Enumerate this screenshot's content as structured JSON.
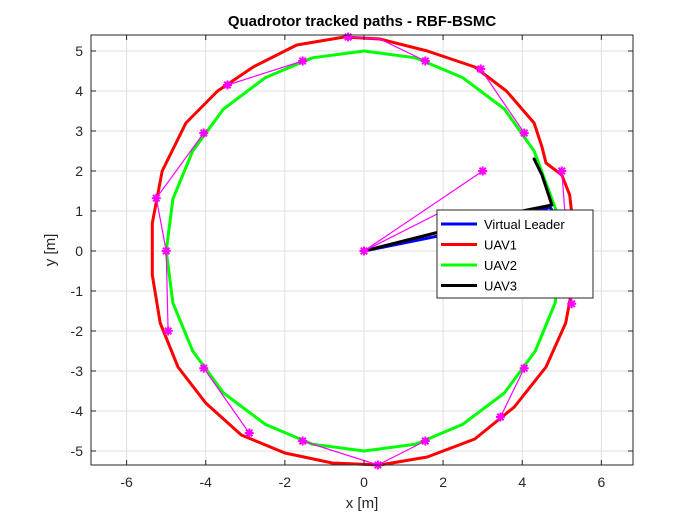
{
  "chart_data": {
    "type": "line",
    "title": "Quadrotor tracked paths - RBF-BSMC",
    "xlabel": "x [m]",
    "ylabel": "y [m]",
    "xlim": [
      -6.9,
      6.8
    ],
    "ylim": [
      -5.35,
      5.4
    ],
    "xticks": [
      -6,
      -4,
      -2,
      0,
      2,
      4,
      6
    ],
    "yticks": [
      -5,
      -4,
      -3,
      -2,
      -1,
      0,
      1,
      2,
      3,
      4,
      5
    ],
    "grid": true,
    "legend_position": "right",
    "series": [
      {
        "name": "Virtual Leader",
        "color": "#0000ff",
        "points": [
          [
            0,
            0
          ],
          [
            1,
            0.2
          ],
          [
            2,
            0.4
          ],
          [
            3,
            0.65
          ],
          [
            4,
            0.9
          ],
          [
            4.7,
            1.1
          ],
          [
            4.9,
            0.8
          ],
          [
            5,
            0
          ]
        ]
      },
      {
        "name": "UAV1",
        "color": "#ff0000",
        "points": [
          [
            5.3,
            0.5
          ],
          [
            5.2,
            1.4
          ],
          [
            5.0,
            1.9
          ],
          [
            4.6,
            2.2
          ],
          [
            4.5,
            2.6
          ],
          [
            4.3,
            3.2
          ],
          [
            3.6,
            4.0
          ],
          [
            2.8,
            4.6
          ],
          [
            1.6,
            5.0
          ],
          [
            0.4,
            5.3
          ],
          [
            -0.5,
            5.35
          ],
          [
            -1.7,
            5.15
          ],
          [
            -2.8,
            4.6
          ],
          [
            -3.7,
            4.0
          ],
          [
            -4.5,
            3.2
          ],
          [
            -5.1,
            2.0
          ],
          [
            -5.35,
            0.7
          ],
          [
            -5.35,
            -0.6
          ],
          [
            -5.15,
            -1.8
          ],
          [
            -4.7,
            -2.9
          ],
          [
            -4.0,
            -3.8
          ],
          [
            -3.1,
            -4.6
          ],
          [
            -2.0,
            -5.05
          ],
          [
            -0.8,
            -5.3
          ],
          [
            0.4,
            -5.35
          ],
          [
            1.6,
            -5.15
          ],
          [
            2.8,
            -4.7
          ],
          [
            3.8,
            -3.9
          ],
          [
            4.6,
            -2.9
          ],
          [
            5.1,
            -1.8
          ],
          [
            5.25,
            -1.0
          ],
          [
            5.3,
            0.5
          ]
        ]
      },
      {
        "name": "UAV2",
        "color": "#00ff00",
        "points": [
          [
            4.6,
            1.7
          ],
          [
            4.3,
            2.5
          ],
          [
            3.55,
            3.55
          ],
          [
            2.5,
            4.33
          ],
          [
            1.3,
            4.83
          ],
          [
            0,
            5
          ],
          [
            -1.3,
            4.83
          ],
          [
            -2.5,
            4.33
          ],
          [
            -3.55,
            3.55
          ],
          [
            -4.33,
            2.5
          ],
          [
            -4.83,
            1.3
          ],
          [
            -5,
            0
          ],
          [
            -4.83,
            -1.3
          ],
          [
            -4.33,
            -2.5
          ],
          [
            -3.55,
            -3.55
          ],
          [
            -2.5,
            -4.33
          ],
          [
            -1.3,
            -4.83
          ],
          [
            0,
            -5
          ],
          [
            1.3,
            -4.83
          ],
          [
            2.5,
            -4.33
          ],
          [
            3.55,
            -3.55
          ],
          [
            4.33,
            -2.5
          ],
          [
            4.83,
            -1.3
          ],
          [
            5,
            0
          ],
          [
            4.9,
            0.9
          ],
          [
            4.6,
            1.7
          ]
        ]
      },
      {
        "name": "UAV3",
        "color": "#000000",
        "points": [
          [
            0,
            0
          ],
          [
            1,
            0.25
          ],
          [
            2,
            0.5
          ],
          [
            3,
            0.75
          ],
          [
            4,
            1.0
          ],
          [
            4.75,
            1.15
          ],
          [
            4.5,
            1.9
          ],
          [
            4.3,
            2.3
          ]
        ]
      }
    ],
    "markers": {
      "color": "#ff00ff",
      "links": [
        [
          [
            0,
            0
          ],
          [
            3,
            2
          ]
        ],
        [
          [
            0,
            0
          ],
          [
            2,
            1
          ]
        ],
        [
          [
            -0.4,
            5.35
          ],
          [
            0.4,
            5.3
          ],
          [
            1.55,
            4.75
          ]
        ],
        [
          [
            -3.45,
            4.15
          ],
          [
            -1.55,
            4.75
          ]
        ],
        [
          [
            -5.25,
            1.32
          ],
          [
            -4.05,
            2.95
          ]
        ],
        [
          [
            -5.0,
            0
          ],
          [
            -5.25,
            1.32
          ]
        ],
        [
          [
            -4.95,
            -2.0
          ],
          [
            -5.0,
            0
          ]
        ],
        [
          [
            -4.05,
            -2.93
          ],
          [
            -2.9,
            -4.55
          ]
        ],
        [
          [
            -1.55,
            -4.75
          ],
          [
            0.35,
            -5.35
          ],
          [
            1.55,
            -4.75
          ]
        ],
        [
          [
            3.45,
            -4.15
          ],
          [
            4.05,
            -2.93
          ]
        ],
        [
          [
            5.25,
            -1.32
          ],
          [
            5.0,
            2.0
          ]
        ],
        [
          [
            2.95,
            4.55
          ],
          [
            4.05,
            2.95
          ]
        ]
      ],
      "points": [
        [
          0,
          0
        ],
        [
          3,
          2
        ],
        [
          5,
          2
        ],
        [
          4.05,
          2.95
        ],
        [
          2.95,
          4.55
        ],
        [
          1.55,
          4.75
        ],
        [
          -0.4,
          5.35
        ],
        [
          -1.55,
          4.75
        ],
        [
          -3.45,
          4.15
        ],
        [
          -4.05,
          2.95
        ],
        [
          -5.25,
          1.32
        ],
        [
          -5.0,
          0
        ],
        [
          -4.95,
          -2.0
        ],
        [
          -4.05,
          -2.93
        ],
        [
          -2.9,
          -4.55
        ],
        [
          -1.55,
          -4.75
        ],
        [
          0.35,
          -5.35
        ],
        [
          1.55,
          -4.75
        ],
        [
          3.45,
          -4.15
        ],
        [
          4.05,
          -2.93
        ],
        [
          5.25,
          -1.32
        ]
      ]
    }
  }
}
